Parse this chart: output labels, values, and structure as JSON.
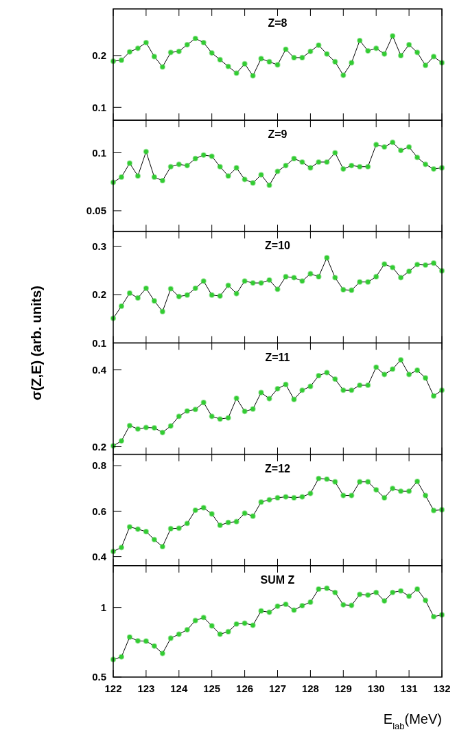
{
  "chart_data": [
    {
      "type": "line",
      "title": "Z=8",
      "marker": "circle",
      "tick_labels": "y",
      "xlim": [
        122,
        132
      ],
      "xticks": [
        122,
        123,
        124,
        125,
        126,
        127,
        128,
        129,
        130,
        131,
        132
      ],
      "ylim": [
        0.075,
        0.29
      ],
      "yticks": [
        0.1,
        0.2
      ],
      "x": [
        122,
        122.25,
        122.5,
        122.75,
        123,
        123.25,
        123.5,
        123.75,
        124,
        124.25,
        124.5,
        124.75,
        125,
        125.25,
        125.5,
        125.75,
        126,
        126.25,
        126.5,
        126.75,
        127,
        127.25,
        127.5,
        127.75,
        128,
        128.25,
        128.5,
        128.75,
        129,
        129.25,
        129.5,
        129.75,
        130,
        130.25,
        130.5,
        130.75,
        131,
        131.25,
        131.5,
        131.75,
        132
      ],
      "series": [
        {
          "color": "#33cc33",
          "values": [
            0.189,
            0.191,
            0.207,
            0.214,
            0.225,
            0.198,
            0.178,
            0.206,
            0.208,
            0.221,
            0.233,
            0.225,
            0.205,
            0.192,
            0.179,
            0.166,
            0.184,
            0.161,
            0.194,
            0.188,
            0.182,
            0.212,
            0.196,
            0.196,
            0.208,
            0.22,
            0.203,
            0.188,
            0.162,
            0.186,
            0.229,
            0.209,
            0.214,
            0.203,
            0.238,
            0.2,
            0.221,
            0.206,
            0.181,
            0.198,
            0.186
          ]
        }
      ]
    },
    {
      "type": "line",
      "title": "Z=9",
      "marker": "circle",
      "tick_labels": "y",
      "xlim": [
        122,
        132
      ],
      "xticks": [
        122,
        123,
        124,
        125,
        126,
        127,
        128,
        129,
        130,
        131,
        132
      ],
      "ylim": [
        0.032,
        0.128
      ],
      "yticks": [
        0.05,
        0.1
      ],
      "x": [
        122,
        122.25,
        122.5,
        122.75,
        123,
        123.25,
        123.5,
        123.75,
        124,
        124.25,
        124.5,
        124.75,
        125,
        125.25,
        125.5,
        125.75,
        126,
        126.25,
        126.5,
        126.75,
        127,
        127.25,
        127.5,
        127.75,
        128,
        128.25,
        128.5,
        128.75,
        129,
        129.25,
        129.5,
        129.75,
        130,
        130.25,
        130.5,
        130.75,
        131,
        131.25,
        131.5,
        131.75,
        132
      ],
      "series": [
        {
          "color": "#33cc33",
          "values": [
            0.0745,
            0.079,
            0.091,
            0.08,
            0.101,
            0.079,
            0.076,
            0.088,
            0.09,
            0.089,
            0.095,
            0.098,
            0.097,
            0.088,
            0.08,
            0.087,
            0.077,
            0.074,
            0.081,
            0.072,
            0.084,
            0.089,
            0.095,
            0.092,
            0.087,
            0.092,
            0.092,
            0.1,
            0.086,
            0.089,
            0.088,
            0.088,
            0.107,
            0.105,
            0.109,
            0.102,
            0.105,
            0.096,
            0.09,
            0.086,
            0.087
          ]
        }
      ]
    },
    {
      "type": "line",
      "title": "Z=10",
      "marker": "circle",
      "tick_labels": "y",
      "xlim": [
        122,
        132
      ],
      "xticks": [
        122,
        123,
        124,
        125,
        126,
        127,
        128,
        129,
        130,
        131,
        132
      ],
      "ylim": [
        0.1,
        0.33
      ],
      "yticks": [
        0.1,
        0.2,
        0.3
      ],
      "x": [
        122,
        122.25,
        122.5,
        122.75,
        123,
        123.25,
        123.5,
        123.75,
        124,
        124.25,
        124.5,
        124.75,
        125,
        125.25,
        125.5,
        125.75,
        126,
        126.25,
        126.5,
        126.75,
        127,
        127.25,
        127.5,
        127.75,
        128,
        128.25,
        128.5,
        128.75,
        129,
        129.25,
        129.5,
        129.75,
        130,
        130.25,
        130.5,
        130.75,
        131,
        131.25,
        131.5,
        131.75,
        132
      ],
      "series": [
        {
          "color": "#33cc33",
          "values": [
            0.151,
            0.176,
            0.203,
            0.193,
            0.213,
            0.187,
            0.165,
            0.212,
            0.196,
            0.199,
            0.213,
            0.228,
            0.199,
            0.197,
            0.219,
            0.202,
            0.228,
            0.224,
            0.224,
            0.23,
            0.211,
            0.237,
            0.235,
            0.228,
            0.243,
            0.237,
            0.276,
            0.235,
            0.21,
            0.209,
            0.226,
            0.226,
            0.237,
            0.263,
            0.256,
            0.235,
            0.248,
            0.262,
            0.261,
            0.265,
            0.249
          ]
        }
      ]
    },
    {
      "type": "line",
      "title": "Z=11",
      "ylabel": "σ(Z,E) (arb. units)",
      "marker": "circle",
      "tick_labels": "y",
      "xlim": [
        122,
        132
      ],
      "xticks": [
        122,
        123,
        124,
        125,
        126,
        127,
        128,
        129,
        130,
        131,
        132
      ],
      "ylim": [
        0.18,
        0.47
      ],
      "yticks": [
        0.2,
        0.4
      ],
      "x": [
        122,
        122.25,
        122.5,
        122.75,
        123,
        123.25,
        123.5,
        123.75,
        124,
        124.25,
        124.5,
        124.75,
        125,
        125.25,
        125.5,
        125.75,
        126,
        126.25,
        126.5,
        126.75,
        127,
        127.25,
        127.5,
        127.75,
        128,
        128.25,
        128.5,
        128.75,
        129,
        129.25,
        129.5,
        129.75,
        130,
        130.25,
        130.5,
        130.75,
        131,
        131.25,
        131.5,
        131.75,
        132
      ],
      "series": [
        {
          "color": "#33cc33",
          "values": [
            0.202,
            0.215,
            0.255,
            0.246,
            0.25,
            0.249,
            0.237,
            0.254,
            0.279,
            0.293,
            0.297,
            0.315,
            0.279,
            0.272,
            0.275,
            0.326,
            0.292,
            0.298,
            0.341,
            0.325,
            0.351,
            0.362,
            0.323,
            0.347,
            0.357,
            0.385,
            0.393,
            0.376,
            0.347,
            0.347,
            0.36,
            0.36,
            0.407,
            0.388,
            0.402,
            0.426,
            0.388,
            0.399,
            0.379,
            0.332,
            0.347
          ]
        }
      ]
    },
    {
      "type": "line",
      "title": "Z=12",
      "marker": "circle",
      "tick_labels": "y",
      "xlim": [
        122,
        132
      ],
      "xticks": [
        122,
        123,
        124,
        125,
        126,
        127,
        128,
        129,
        130,
        131,
        132
      ],
      "ylim": [
        0.36,
        0.85
      ],
      "yticks": [
        0.4,
        0.6,
        0.8
      ],
      "x": [
        122,
        122.25,
        122.5,
        122.75,
        123,
        123.25,
        123.5,
        123.75,
        124,
        124.25,
        124.5,
        124.75,
        125,
        125.25,
        125.5,
        125.75,
        126,
        126.25,
        126.5,
        126.75,
        127,
        127.25,
        127.5,
        127.75,
        128,
        128.25,
        128.5,
        128.75,
        129,
        129.25,
        129.5,
        129.75,
        130,
        130.25,
        130.5,
        130.75,
        131,
        131.25,
        131.5,
        131.75,
        132
      ],
      "series": [
        {
          "color": "#33cc33",
          "values": [
            0.423,
            0.44,
            0.531,
            0.521,
            0.51,
            0.475,
            0.444,
            0.523,
            0.525,
            0.546,
            0.604,
            0.615,
            0.588,
            0.538,
            0.55,
            0.554,
            0.591,
            0.578,
            0.64,
            0.65,
            0.659,
            0.663,
            0.659,
            0.663,
            0.678,
            0.744,
            0.741,
            0.729,
            0.669,
            0.669,
            0.729,
            0.729,
            0.694,
            0.659,
            0.7,
            0.688,
            0.688,
            0.731,
            0.669,
            0.603,
            0.606
          ]
        }
      ]
    },
    {
      "type": "line",
      "title": "SUM Z",
      "xlabel": "E$_{lab}$(MeV)",
      "marker": "circle",
      "xlim": [
        122,
        132
      ],
      "xticks": [
        122,
        123,
        124,
        125,
        126,
        127,
        128,
        129,
        130,
        131,
        132
      ],
      "ylim": [
        0.5,
        1.3
      ],
      "yticks": [
        0.5,
        1
      ],
      "x": [
        122,
        122.25,
        122.5,
        122.75,
        123,
        123.25,
        123.5,
        123.75,
        124,
        124.25,
        124.5,
        124.75,
        125,
        125.25,
        125.5,
        125.75,
        126,
        126.25,
        126.5,
        126.75,
        127,
        127.25,
        127.5,
        127.75,
        128,
        128.25,
        128.5,
        128.75,
        129,
        129.25,
        129.5,
        129.75,
        130,
        130.25,
        130.5,
        130.75,
        131,
        131.25,
        131.5,
        131.75,
        132
      ],
      "series": [
        {
          "color": "#33cc33",
          "values": [
            0.626,
            0.645,
            0.787,
            0.76,
            0.758,
            0.723,
            0.67,
            0.779,
            0.808,
            0.84,
            0.906,
            0.928,
            0.868,
            0.808,
            0.826,
            0.881,
            0.887,
            0.872,
            0.975,
            0.966,
            1.009,
            1.023,
            0.981,
            1.013,
            1.038,
            1.132,
            1.138,
            1.108,
            1.019,
            1.015,
            1.094,
            1.089,
            1.108,
            1.047,
            1.108,
            1.119,
            1.081,
            1.132,
            1.051,
            0.934,
            0.947
          ]
        }
      ]
    }
  ]
}
